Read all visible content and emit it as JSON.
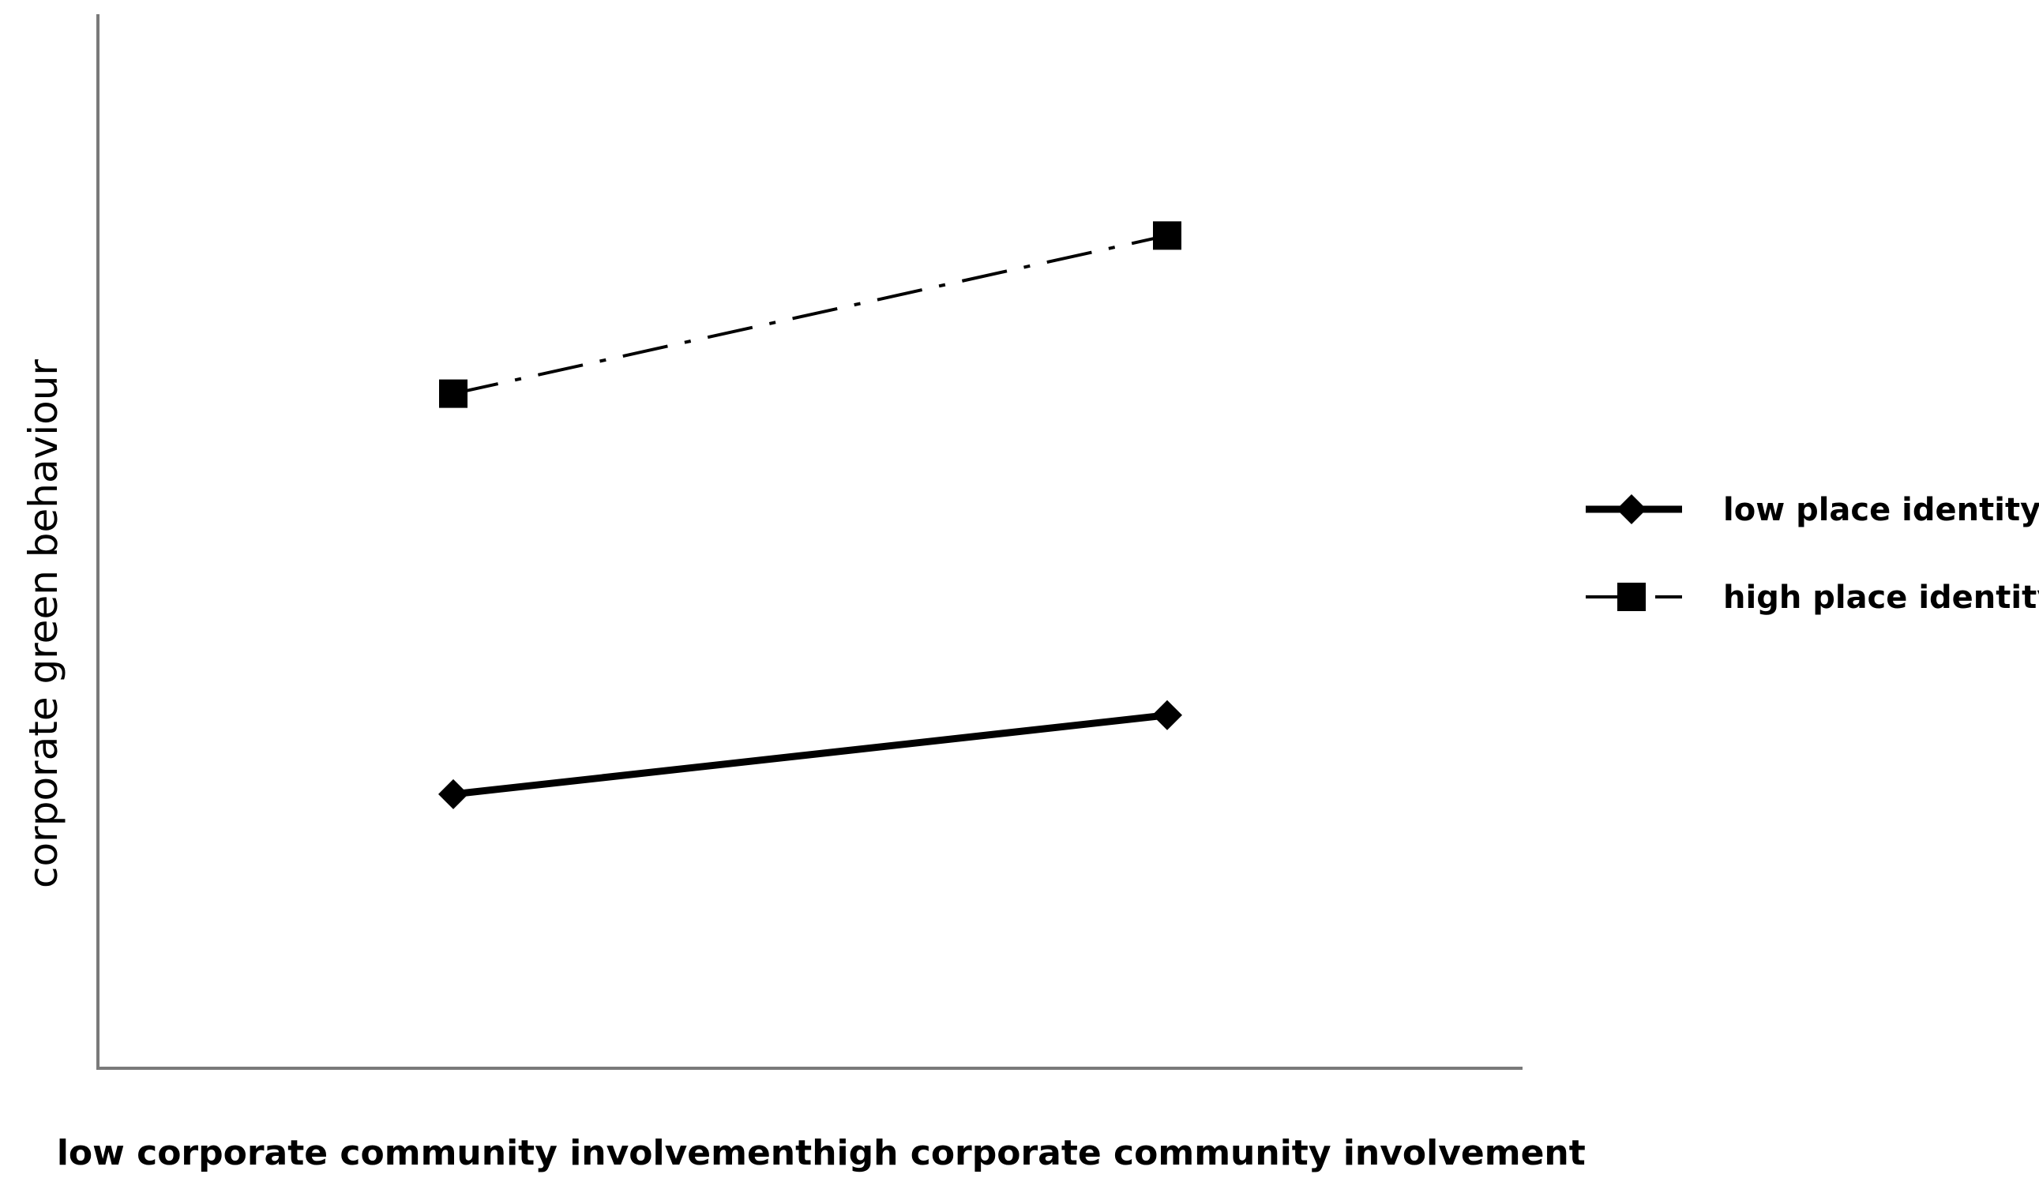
{
  "chart_data": {
    "type": "line",
    "title": "",
    "xlabel": "",
    "ylabel": "corporate green behaviour",
    "categories": [
      "low corporate community involvement",
      "high corporate community involvement"
    ],
    "ylim": [
      0,
      10
    ],
    "grid": false,
    "legend_position": "right",
    "series": [
      {
        "name": "low place identity",
        "values": [
          2.6,
          3.35
        ],
        "marker": "diamond",
        "line_style": "solid",
        "color": "#000000"
      },
      {
        "name": "high place identity",
        "values": [
          6.4,
          7.9
        ],
        "marker": "square",
        "line_style": "dash-dot",
        "color": "#000000"
      }
    ]
  }
}
